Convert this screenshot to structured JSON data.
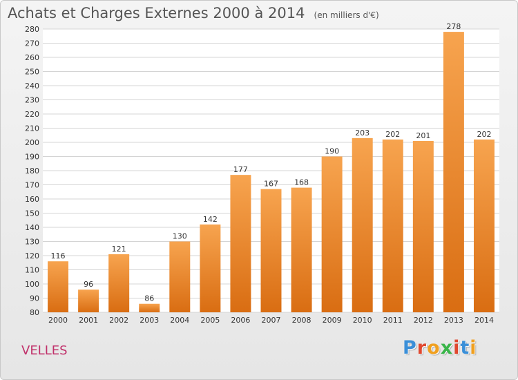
{
  "header": {
    "title": "Achats et Charges Externes 2000 à 2014",
    "subtitle": "(en milliers d'€)"
  },
  "footer": {
    "location": "VELLES",
    "logo_letters": [
      "P",
      "r",
      "o",
      "x",
      "i",
      "t",
      "i"
    ],
    "logo_colors": [
      "#3a8fd8",
      "#e0482f",
      "#f0a020",
      "#3ab54a",
      "#e0482f",
      "#3a8fd8",
      "#f0a020"
    ]
  },
  "chart_data": {
    "type": "bar",
    "title": "Achats et Charges Externes 2000 à 2014",
    "subtitle": "(en milliers d'€)",
    "categories": [
      "2000",
      "2001",
      "2002",
      "2003",
      "2004",
      "2005",
      "2006",
      "2007",
      "2008",
      "2009",
      "2010",
      "2011",
      "2012",
      "2013",
      "2014"
    ],
    "values": [
      116,
      96,
      121,
      86,
      130,
      142,
      177,
      167,
      168,
      190,
      203,
      202,
      201,
      278,
      202
    ],
    "ylim": [
      80,
      280
    ],
    "yticks": [
      80,
      90,
      100,
      110,
      120,
      130,
      140,
      150,
      160,
      170,
      180,
      190,
      200,
      210,
      220,
      230,
      240,
      250,
      260,
      270,
      280
    ],
    "grid": true,
    "bar_color": "#f0922e",
    "xlabel": "",
    "ylabel": ""
  }
}
